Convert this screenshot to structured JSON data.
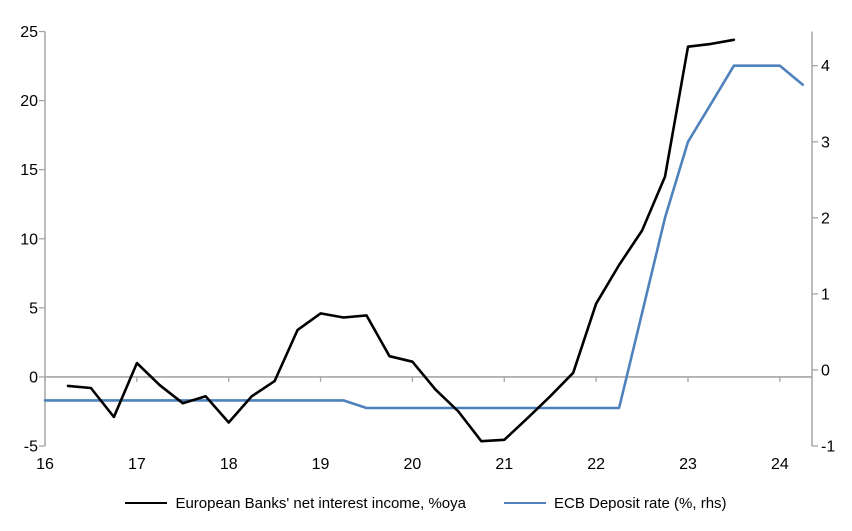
{
  "colors": {
    "background": "#ffffff",
    "axis": "#a6a6a6",
    "tick_label": "#000000",
    "series_black": "#000000",
    "series_blue": "#4f82bc"
  },
  "chart_data": {
    "type": "line",
    "title": "",
    "grid": "zero-line-only",
    "legend_position": "bottom-center",
    "x_axis": {
      "min": 16,
      "max": 24.35,
      "ticks": [
        16,
        17,
        18,
        19,
        20,
        21,
        22,
        23,
        24
      ]
    },
    "left_axis": {
      "min": -5,
      "max": 25,
      "ticks": [
        25,
        20,
        15,
        10,
        5,
        0,
        -5
      ]
    },
    "right_axis": {
      "min": -1,
      "max": 4.45,
      "ticks": [
        4,
        3,
        2,
        1,
        0,
        -1
      ]
    },
    "series": [
      {
        "name": "European Banks' net interest income, %oya",
        "axis": "left",
        "color": "#000000",
        "x": [
          16.25,
          16.5,
          16.75,
          17,
          17.25,
          17.5,
          17.75,
          18,
          18.25,
          18.5,
          18.75,
          19,
          19.25,
          19.5,
          19.75,
          20,
          20.25,
          20.5,
          20.75,
          21,
          21.25,
          21.5,
          21.75,
          22,
          22.25,
          22.5,
          22.75,
          23,
          23.25,
          23.5
        ],
        "values": [
          -0.65,
          -0.8,
          -2.9,
          1.0,
          -0.6,
          -1.9,
          -1.4,
          -3.3,
          -1.4,
          -0.3,
          3.4,
          4.6,
          4.3,
          4.45,
          1.5,
          1.1,
          -0.9,
          -2.5,
          -4.65,
          -4.55,
          -3.0,
          -1.4,
          0.3,
          5.3,
          8.1,
          10.6,
          14.5,
          23.9,
          24.1,
          24.4
        ]
      },
      {
        "name": "ECB Deposit rate (%, rhs)",
        "axis": "right",
        "color": "#4f82bc",
        "x": [
          16,
          16.25,
          16.5,
          16.75,
          17,
          17.25,
          17.5,
          17.75,
          18,
          18.25,
          18.5,
          18.75,
          19,
          19.25,
          19.5,
          19.75,
          20,
          20.25,
          20.5,
          20.75,
          21,
          21.25,
          21.5,
          21.75,
          22,
          22.25,
          22.5,
          22.75,
          23,
          23.25,
          23.5,
          23.75,
          24,
          24.25
        ],
        "values": [
          -0.4,
          -0.4,
          -0.4,
          -0.4,
          -0.4,
          -0.4,
          -0.4,
          -0.4,
          -0.4,
          -0.4,
          -0.4,
          -0.4,
          -0.4,
          -0.4,
          -0.5,
          -0.5,
          -0.5,
          -0.5,
          -0.5,
          -0.5,
          -0.5,
          -0.5,
          -0.5,
          -0.5,
          -0.5,
          -0.5,
          0.75,
          2.0,
          3.0,
          3.5,
          4.0,
          4.0,
          4.0,
          3.75
        ]
      }
    ]
  }
}
